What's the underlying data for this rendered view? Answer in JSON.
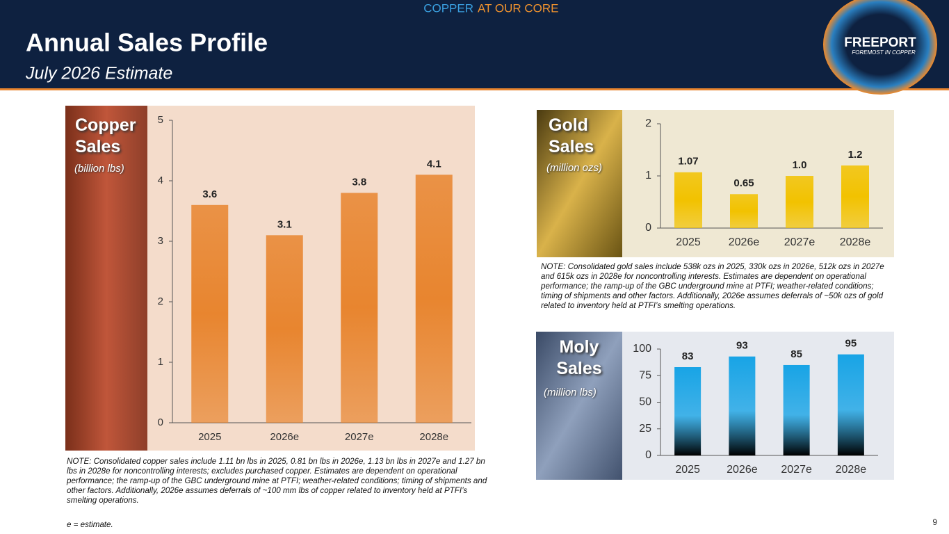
{
  "header": {
    "banner_left": "COPPER",
    "banner_right": "AT OUR CORE",
    "title": "Annual Sales Profile",
    "subtitle": "July 2026 Estimate",
    "logo": "FREEPORT",
    "logo_tagline": "FOREMOST IN COPPER"
  },
  "chart_data": [
    {
      "type": "bar",
      "title": "Copper Sales",
      "unit": "(billion lbs)",
      "categories": [
        "2025",
        "2026e",
        "2027e",
        "2028e"
      ],
      "values": [
        3.6,
        3.1,
        3.8,
        4.1
      ],
      "color": "#e8852f",
      "ylim": [
        0,
        5
      ],
      "yticks": [
        0,
        1,
        2,
        3,
        4,
        5
      ],
      "note": "NOTE: Consolidated copper sales include 1.11 bn lbs in 2025, 0.81 bn lbs in 2026e, 1.13 bn lbs in 2027e and 1.27 bn lbs in 2028e for noncontrolling interests; excludes purchased copper. Estimates are dependent on operational performance; the ramp-up of the GBC underground mine at PTFI; weather-related conditions; timing of shipments and other factors. Additionally, 2026e assumes deferrals of ~100 mm lbs of copper related to inventory held at PTFI’s smelting operations."
    },
    {
      "type": "bar",
      "title": "Gold Sales",
      "unit": "(million ozs)",
      "categories": [
        "2025",
        "2026e",
        "2027e",
        "2028e"
      ],
      "values": [
        1.07,
        0.65,
        1.0,
        1.2
      ],
      "value_labels": [
        "1.07",
        "0.65",
        "1.0",
        "1.2"
      ],
      "color": "#f2c200",
      "ylim": [
        0,
        2
      ],
      "yticks": [
        0,
        1,
        2
      ],
      "note": "NOTE: Consolidated gold sales include 538k ozs in 2025, 330k ozs in 2026e, 512k ozs in 2027e and 615k ozs in 2028e for noncontrolling interests. Estimates are dependent on operational performance; the ramp-up of the GBC underground mine at PTFI; weather-related conditions; timing of shipments and other factors. Additionally, 2026e assumes deferrals of ~50k ozs of gold related to inventory held at PTFI’s smelting operations."
    },
    {
      "type": "bar",
      "title": "Moly Sales",
      "unit": "(million lbs)",
      "categories": [
        "2025",
        "2026e",
        "2027e",
        "2028e"
      ],
      "values": [
        83,
        93,
        85,
        95
      ],
      "color": "#18a4e6",
      "ylim": [
        0,
        100
      ],
      "yticks": [
        0,
        25,
        50,
        75,
        100
      ]
    }
  ],
  "footer": {
    "estimate_note": "e = estimate.",
    "page_number": "9"
  }
}
